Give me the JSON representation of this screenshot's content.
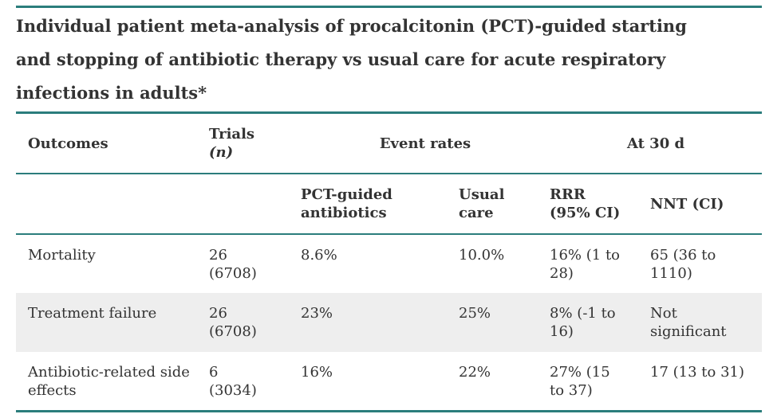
{
  "title": "Individual patient meta-analysis of procalcitonin (PCT)-guided starting and stopping of antibiotic therapy vs usual care for acute respiratory infections in adults*",
  "table": {
    "group_header": {
      "outcomes": "Outcomes",
      "trials": "Trials",
      "trials_unit": "(n)",
      "event_rates": "Event rates",
      "at_30d": "At 30 d"
    },
    "sub_header": [
      "PCT-guided antibiotics",
      "Usual care",
      "RRR (95% CI)",
      "NNT (CI)"
    ],
    "rows": [
      [
        "Mortality",
        "26 (6708)",
        "8.6%",
        "10.0%",
        "16% (1 to 28)",
        "65 (36 to 1110)"
      ],
      [
        "Treatment failure",
        "26 (6708)",
        "23%",
        "25%",
        "8% (-1 to 16)",
        "Not significant"
      ],
      [
        "Antibiotic-related side effects",
        "6 (3034)",
        "16%",
        "22%",
        "27% (15 to 37)",
        "17 (13 to 31)"
      ]
    ]
  }
}
